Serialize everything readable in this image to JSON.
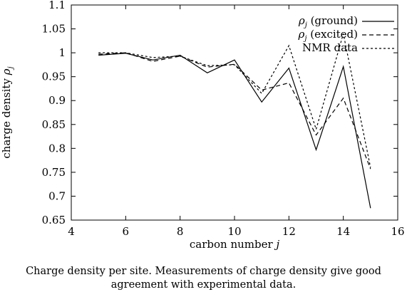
{
  "chart_data": {
    "type": "line",
    "title": "",
    "xlabel": "carbon number j",
    "ylabel": "charge density ρ_j",
    "xlim": [
      4,
      16
    ],
    "ylim": [
      0.65,
      1.1
    ],
    "x_ticks": [
      4,
      6,
      8,
      10,
      12,
      14,
      16
    ],
    "y_ticks": [
      0.65,
      0.7,
      0.75,
      0.8,
      0.85,
      0.9,
      0.95,
      1,
      1.05,
      1.1
    ],
    "x_tick_labels": [
      "4",
      "6",
      "8",
      "10",
      "12",
      "14",
      "16"
    ],
    "y_tick_labels": [
      "0.65",
      "0.7",
      "0.75",
      "0.8",
      "0.85",
      "0.9",
      "0.95",
      "1",
      "1.05",
      "1.1"
    ],
    "grid": false,
    "legend_position": "top-right",
    "x": [
      5,
      6,
      7,
      8,
      9,
      10,
      11,
      12,
      13,
      14,
      15
    ],
    "series": [
      {
        "name": "ρ_j (ground)",
        "style": "solid",
        "values": [
          0.995,
          0.999,
          0.985,
          0.995,
          0.958,
          0.985,
          0.897,
          0.968,
          0.797,
          0.971,
          0.675
        ]
      },
      {
        "name": "ρ_j (excited)",
        "style": "dashed",
        "values": [
          0.997,
          1.0,
          0.982,
          0.993,
          0.97,
          0.976,
          0.922,
          0.937,
          0.828,
          0.905,
          0.757
        ]
      },
      {
        "name": "NMR data",
        "style": "dotted",
        "values": [
          1.0,
          1.0,
          0.99,
          0.993,
          0.973,
          0.975,
          0.915,
          1.015,
          0.84,
          1.04,
          0.76
        ]
      }
    ]
  },
  "legend": {
    "ground": {
      "rho": "ρ",
      "sub": "j",
      "label": " (ground)"
    },
    "excited": {
      "rho": "ρ",
      "sub": "j",
      "label": " (excited)"
    },
    "nmr": {
      "label": "NMR data"
    }
  },
  "axes": {
    "xlabel_text": "carbon number ",
    "xlabel_var": "j",
    "ylabel_text": "charge density ",
    "ylabel_rho": "ρ",
    "ylabel_sub": "j"
  },
  "caption": "Charge density per site. Measurements of charge density give good agreement with experimental data."
}
